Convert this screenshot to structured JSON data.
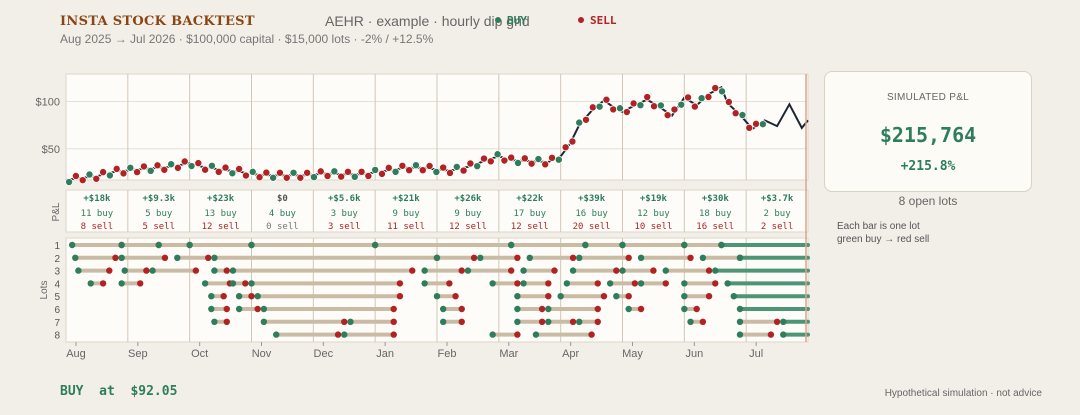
{
  "header": {
    "title": "INSTA STOCK BACKTEST",
    "subtitle": "AEHR  ·  example  ·  hourly dip grid",
    "meta": "Aug 2025  →  Jul 2026   ·   $100,000 capital   ·   $15,000 lots   ·   -2% / +12.5%"
  },
  "legend": [
    {
      "label": "BUY",
      "color": "#2e7d5b"
    },
    {
      "label": "SELL",
      "color": "#b22222"
    }
  ],
  "colors": {
    "buy": "#2e7d5b",
    "sell": "#b22222",
    "line": "#1e2633",
    "hold": "#c9bba4",
    "open": "#4d9574",
    "grid": "#ddd6c9",
    "month": "#d4c6b4"
  },
  "chart_data": {
    "type": "line",
    "ylabel": "",
    "y_ticks": [
      {
        "label": "$100",
        "value": 100
      },
      {
        "label": "$50",
        "value": 50
      }
    ],
    "ylim": [
      17,
      129
    ],
    "months": [
      "Aug",
      "Sep",
      "Oct",
      "Nov",
      "Dec",
      "Jan",
      "Feb",
      "Mar",
      "Apr",
      "May",
      "Jun",
      "Jul"
    ],
    "price": [
      {
        "x": 0,
        "y": 17
      },
      {
        "x": 0.2,
        "y": 19
      },
      {
        "x": 0.5,
        "y": 21
      },
      {
        "x": 0.8,
        "y": 26
      },
      {
        "x": 1.0,
        "y": 27
      },
      {
        "x": 1.3,
        "y": 29
      },
      {
        "x": 1.7,
        "y": 31
      },
      {
        "x": 2.0,
        "y": 35
      },
      {
        "x": 2.2,
        "y": 31
      },
      {
        "x": 2.5,
        "y": 28
      },
      {
        "x": 2.8,
        "y": 26
      },
      {
        "x": 3.0,
        "y": 23
      },
      {
        "x": 3.3,
        "y": 22
      },
      {
        "x": 3.6,
        "y": 22
      },
      {
        "x": 3.9,
        "y": 22
      },
      {
        "x": 4.2,
        "y": 24
      },
      {
        "x": 4.5,
        "y": 23
      },
      {
        "x": 4.8,
        "y": 23
      },
      {
        "x": 5.0,
        "y": 25
      },
      {
        "x": 5.2,
        "y": 27
      },
      {
        "x": 5.5,
        "y": 30
      },
      {
        "x": 5.8,
        "y": 30
      },
      {
        "x": 6.0,
        "y": 28
      },
      {
        "x": 6.2,
        "y": 27
      },
      {
        "x": 6.4,
        "y": 29
      },
      {
        "x": 6.6,
        "y": 33
      },
      {
        "x": 6.8,
        "y": 38
      },
      {
        "x": 7.0,
        "y": 42
      },
      {
        "x": 7.2,
        "y": 38
      },
      {
        "x": 7.5,
        "y": 37
      },
      {
        "x": 7.8,
        "y": 36
      },
      {
        "x": 8.0,
        "y": 42
      },
      {
        "x": 8.15,
        "y": 55
      },
      {
        "x": 8.3,
        "y": 75
      },
      {
        "x": 8.5,
        "y": 90
      },
      {
        "x": 8.7,
        "y": 101
      },
      {
        "x": 8.9,
        "y": 92
      },
      {
        "x": 9.0,
        "y": 89
      },
      {
        "x": 9.2,
        "y": 96
      },
      {
        "x": 9.4,
        "y": 102
      },
      {
        "x": 9.6,
        "y": 94
      },
      {
        "x": 9.8,
        "y": 85
      },
      {
        "x": 10.0,
        "y": 104
      },
      {
        "x": 10.2,
        "y": 96
      },
      {
        "x": 10.4,
        "y": 108
      },
      {
        "x": 10.6,
        "y": 115
      },
      {
        "x": 10.7,
        "y": 98
      },
      {
        "x": 10.9,
        "y": 86
      },
      {
        "x": 11.1,
        "y": 71
      },
      {
        "x": 11.3,
        "y": 80
      },
      {
        "x": 11.5,
        "y": 74
      },
      {
        "x": 11.7,
        "y": 97
      },
      {
        "x": 11.9,
        "y": 72
      },
      {
        "x": 12.0,
        "y": 80
      }
    ]
  },
  "pnl_by_month": [
    {
      "pnl": "+$18k",
      "buys": "11 buy",
      "sells": "8 sell",
      "zero": false
    },
    {
      "pnl": "+$9.3k",
      "buys": "5 buy",
      "sells": "5 sell",
      "zero": false
    },
    {
      "pnl": "+$23k",
      "buys": "13 buy",
      "sells": "12 sell",
      "zero": false
    },
    {
      "pnl": "$0",
      "buys": "4 buy",
      "sells": "0 sell",
      "zero": true
    },
    {
      "pnl": "+$5.6k",
      "buys": "3 buy",
      "sells": "3 sell",
      "zero": false
    },
    {
      "pnl": "+$21k",
      "buys": "9 buy",
      "sells": "11 sell",
      "zero": false
    },
    {
      "pnl": "+$26k",
      "buys": "9 buy",
      "sells": "12 sell",
      "zero": false
    },
    {
      "pnl": "+$22k",
      "buys": "17 buy",
      "sells": "12 sell",
      "zero": false
    },
    {
      "pnl": "+$39k",
      "buys": "16 buy",
      "sells": "20 sell",
      "zero": false
    },
    {
      "pnl": "+$19k",
      "buys": "12 buy",
      "sells": "10 sell",
      "zero": false
    },
    {
      "pnl": "+$30k",
      "buys": "18 buy",
      "sells": "16 sell",
      "zero": false
    },
    {
      "pnl": "+$3.7k",
      "buys": "2 buy",
      "sells": "2 sell",
      "zero": false
    }
  ],
  "pnl_row_label": "P&L",
  "lots_axis_label": "Lots",
  "lots": [
    {
      "label": "1",
      "segments": [
        [
          0.1,
          0.9
        ],
        [
          0.9,
          1.5
        ],
        [
          1.5,
          2.0
        ],
        [
          2.0,
          3.0
        ],
        [
          3.0,
          5.0
        ],
        [
          5.0,
          7.2
        ],
        [
          7.2,
          8.4
        ],
        [
          8.4,
          9.0
        ],
        [
          9.0,
          10.0
        ],
        [
          10.0,
          10.6
        ],
        [
          10.6,
          12.0
        ]
      ],
      "open": true
    },
    {
      "label": "2",
      "segments": [
        [
          0.15,
          0.8
        ],
        [
          0.9,
          1.6
        ],
        [
          1.8,
          2.3
        ],
        [
          2.4,
          6.0
        ],
        [
          6.0,
          6.6
        ],
        [
          6.7,
          7.3
        ],
        [
          7.5,
          8.2
        ],
        [
          8.3,
          9.1
        ],
        [
          9.3,
          10.1
        ],
        [
          10.3,
          10.9
        ],
        [
          10.9,
          12.0
        ]
      ],
      "open": true
    },
    {
      "label": "3",
      "segments": [
        [
          0.2,
          0.7
        ],
        [
          0.95,
          1.3
        ],
        [
          1.4,
          2.1
        ],
        [
          2.4,
          2.6
        ],
        [
          2.7,
          5.6
        ],
        [
          5.8,
          6.4
        ],
        [
          6.5,
          7.2
        ],
        [
          7.4,
          7.9
        ],
        [
          8.2,
          8.9
        ],
        [
          9.0,
          9.5
        ],
        [
          9.7,
          10.4
        ],
        [
          10.5,
          12.0
        ]
      ],
      "open": true
    },
    {
      "label": "4",
      "segments": [
        [
          0.4,
          0.6
        ],
        [
          0.9,
          1.2
        ],
        [
          2.25,
          2.65
        ],
        [
          2.7,
          2.9
        ],
        [
          3.0,
          5.4
        ],
        [
          5.8,
          6.2
        ],
        [
          6.9,
          7.3
        ],
        [
          7.4,
          7.8
        ],
        [
          8.1,
          8.6
        ],
        [
          8.8,
          9.2
        ],
        [
          9.3,
          9.7
        ],
        [
          10.0,
          10.5
        ],
        [
          10.7,
          12.0
        ]
      ],
      "open": true
    },
    {
      "label": "5",
      "segments": [
        [
          2.35,
          2.55
        ],
        [
          2.8,
          3.0
        ],
        [
          3.1,
          5.4
        ],
        [
          6.0,
          6.3
        ],
        [
          7.3,
          7.8
        ],
        [
          8.0,
          8.7
        ],
        [
          8.9,
          9.1
        ],
        [
          10.0,
          10.4
        ],
        [
          10.8,
          12.0
        ]
      ],
      "open": true
    },
    {
      "label": "6",
      "segments": [
        [
          2.35,
          2.6
        ],
        [
          2.8,
          3.1
        ],
        [
          3.2,
          5.3
        ],
        [
          6.1,
          6.4
        ],
        [
          7.3,
          7.7
        ],
        [
          7.8,
          8.6
        ],
        [
          9.1,
          9.3
        ],
        [
          10.0,
          10.2
        ],
        [
          10.9,
          12.0
        ]
      ],
      "open": true
    },
    {
      "label": "7",
      "segments": [
        [
          2.4,
          2.6
        ],
        [
          3.2,
          4.5
        ],
        [
          4.6,
          5.3
        ],
        [
          6.1,
          6.4
        ],
        [
          7.3,
          7.7
        ],
        [
          7.8,
          8.2
        ],
        [
          8.3,
          8.6
        ],
        [
          10.1,
          10.3
        ],
        [
          10.9,
          11.5
        ],
        [
          11.6,
          12.0
        ]
      ],
      "open": true
    },
    {
      "label": "8",
      "segments": [
        [
          3.4,
          4.4
        ],
        [
          4.5,
          5.3
        ],
        [
          6.9,
          7.3
        ],
        [
          7.6,
          8.5
        ],
        [
          10.9,
          11.4
        ],
        [
          11.6,
          12.0
        ]
      ],
      "open": true
    }
  ],
  "summary": {
    "label": "SIMULATED P&L",
    "value": "$215,764",
    "pct": "+215.8%",
    "open_lots": "8 open lots"
  },
  "note": {
    "line1": "Each bar is one lot",
    "line2": "green buy → red sell"
  },
  "status": "BUY  at  $92.05",
  "footer": "Hypothetical simulation  ·  not advice"
}
